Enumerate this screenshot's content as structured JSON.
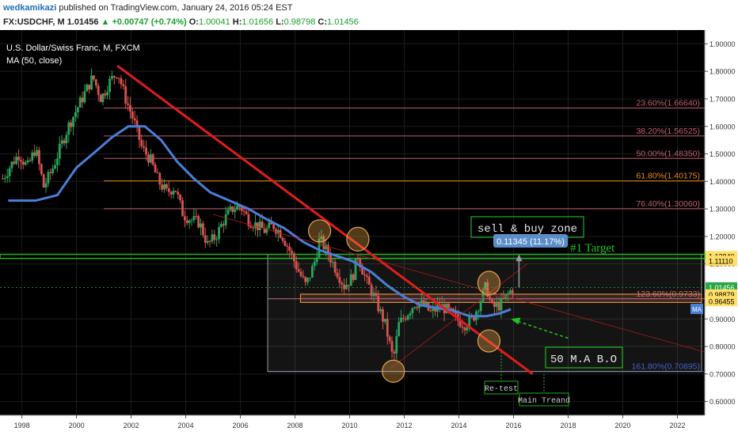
{
  "header": {
    "author": "wedkamikazi",
    "published": "published on TradingView.com, January 24, 2016 05:24 EST",
    "symbol": "FX:USDCHF, M",
    "last": "1.01456",
    "change": "+0.00747 (+0.74%)",
    "o_label": "O:",
    "o_value": "1.00041",
    "h_label": "H:",
    "h_value": "1.01656",
    "l_label": "L:",
    "l_value": "0.98798",
    "c_label": "C:",
    "c_value": "1.01456",
    "up_arrow": "▲"
  },
  "chart_data": {
    "type": "candlestick",
    "title": "U.S. Dollar/Swiss Franc, M, FXCM",
    "indicator": "MA (50, close)",
    "x_ticks": [
      "1998",
      "2000",
      "2002",
      "2004",
      "2006",
      "2008",
      "2010",
      "2012",
      "2014",
      "2016",
      "2018",
      "2020",
      "2022"
    ],
    "y_ticks": [
      "1.90000",
      "1.80000",
      "1.70000",
      "1.60000",
      "1.50000",
      "1.40000",
      "1.30000",
      "1.20000",
      "1.10000",
      "0.90000",
      "0.80000",
      "0.70000",
      "0.60000"
    ],
    "ylim": [
      0.55,
      1.95
    ],
    "xlim": [
      1997.2,
      2023.0
    ],
    "price_path": [
      [
        1997.3,
        1.41
      ],
      [
        1997.6,
        1.46
      ],
      [
        1997.9,
        1.5
      ],
      [
        1998.2,
        1.45
      ],
      [
        1998.5,
        1.52
      ],
      [
        1998.8,
        1.38
      ],
      [
        1999.1,
        1.44
      ],
      [
        1999.4,
        1.52
      ],
      [
        1999.7,
        1.6
      ],
      [
        2000.0,
        1.66
      ],
      [
        2000.3,
        1.72
      ],
      [
        2000.6,
        1.78
      ],
      [
        2000.9,
        1.7
      ],
      [
        2001.2,
        1.76
      ],
      [
        2001.5,
        1.8
      ],
      [
        2001.8,
        1.7
      ],
      [
        2002.1,
        1.62
      ],
      [
        2002.4,
        1.52
      ],
      [
        2002.7,
        1.48
      ],
      [
        2003.0,
        1.4
      ],
      [
        2003.3,
        1.36
      ],
      [
        2003.6,
        1.38
      ],
      [
        2003.9,
        1.28
      ],
      [
        2004.2,
        1.26
      ],
      [
        2004.5,
        1.25
      ],
      [
        2004.8,
        1.17
      ],
      [
        2005.1,
        1.2
      ],
      [
        2005.4,
        1.26
      ],
      [
        2005.7,
        1.3
      ],
      [
        2006.0,
        1.31
      ],
      [
        2006.3,
        1.26
      ],
      [
        2006.6,
        1.24
      ],
      [
        2006.9,
        1.22
      ],
      [
        2007.2,
        1.24
      ],
      [
        2007.5,
        1.21
      ],
      [
        2007.8,
        1.15
      ],
      [
        2008.1,
        1.08
      ],
      [
        2008.4,
        1.02
      ],
      [
        2008.7,
        1.1
      ],
      [
        2008.9,
        1.19
      ],
      [
        2009.2,
        1.14
      ],
      [
        2009.5,
        1.08
      ],
      [
        2009.8,
        1.02
      ],
      [
        2010.1,
        1.05
      ],
      [
        2010.3,
        1.13
      ],
      [
        2010.6,
        1.04
      ],
      [
        2010.9,
        0.98
      ],
      [
        2011.1,
        0.93
      ],
      [
        2011.3,
        0.88
      ],
      [
        2011.6,
        0.75
      ],
      [
        2011.8,
        0.88
      ],
      [
        2012.1,
        0.92
      ],
      [
        2012.4,
        0.96
      ],
      [
        2012.7,
        0.95
      ],
      [
        2013.0,
        0.92
      ],
      [
        2013.3,
        0.95
      ],
      [
        2013.6,
        0.93
      ],
      [
        2013.9,
        0.9
      ],
      [
        2014.2,
        0.88
      ],
      [
        2014.5,
        0.9
      ],
      [
        2014.8,
        0.97
      ],
      [
        2015.0,
        1.02
      ],
      [
        2015.2,
        0.94
      ],
      [
        2015.5,
        0.95
      ],
      [
        2015.8,
        0.99
      ],
      [
        2016.0,
        1.01456
      ]
    ],
    "ma_path": [
      [
        1997.5,
        1.33
      ],
      [
        1998.5,
        1.33
      ],
      [
        1999.3,
        1.35
      ],
      [
        2000.0,
        1.45
      ],
      [
        2000.6,
        1.5
      ],
      [
        2001.3,
        1.56
      ],
      [
        2001.9,
        1.6
      ],
      [
        2002.5,
        1.6
      ],
      [
        2003.1,
        1.55
      ],
      [
        2003.7,
        1.47
      ],
      [
        2004.3,
        1.41
      ],
      [
        2004.9,
        1.36
      ],
      [
        2005.6,
        1.33
      ],
      [
        2006.3,
        1.3
      ],
      [
        2007.0,
        1.26
      ],
      [
        2007.6,
        1.23
      ],
      [
        2008.3,
        1.18
      ],
      [
        2008.9,
        1.15
      ],
      [
        2009.5,
        1.13
      ],
      [
        2010.1,
        1.11
      ],
      [
        2010.8,
        1.07
      ],
      [
        2011.4,
        1.02
      ],
      [
        2012.0,
        0.98
      ],
      [
        2012.6,
        0.95
      ],
      [
        2013.2,
        0.94
      ],
      [
        2013.8,
        0.93
      ],
      [
        2014.4,
        0.91
      ],
      [
        2015.0,
        0.91
      ],
      [
        2015.5,
        0.92
      ],
      [
        2015.9,
        0.935
      ]
    ],
    "horizontal_levels": [
      {
        "label": "23.60%(1.66640)",
        "price": 1.6664,
        "color": "#c06070"
      },
      {
        "label": "38.20%(1.56525)",
        "price": 1.56525,
        "color": "#c06070"
      },
      {
        "label": "50.00%(1.48350)",
        "price": 1.4835,
        "color": "#c06070"
      },
      {
        "label": "61.80%(1.40175)",
        "price": 1.40175,
        "color": "#e88a1e"
      },
      {
        "label": "76.40%(1.30060)",
        "price": 1.3006,
        "color": "#c06070"
      },
      {
        "label": "123.60%(0.9733)",
        "price": 0.9733,
        "color": "#c06070"
      },
      {
        "label": "161.80%(0.70895)",
        "price": 0.70895,
        "color": "#3a50c8"
      }
    ],
    "support_band": [
      1.12,
      1.135
    ],
    "right_price_tags": [
      {
        "text": "1.12840",
        "price": 1.1284,
        "bg": "#ffe066",
        "fg": "#000000"
      },
      {
        "text": "1.11110",
        "price": 1.1111,
        "bg": "#ffe066",
        "fg": "#000000"
      },
      {
        "text": "1.01456",
        "price": 1.01456,
        "bg": "#28a745",
        "fg": "#ffffff"
      },
      {
        "text": "0.98879",
        "price": 0.98879,
        "bg": "#ffe066",
        "fg": "#000000"
      },
      {
        "text": "0.96455",
        "price": 0.96455,
        "bg": "#ffe066",
        "fg": "#000000"
      }
    ],
    "ma_tag": "MA",
    "annotations": {
      "sell_buy_zone": "sell & buy zone",
      "measure": "0.11345 (11.17%)",
      "target": "#1 Target",
      "ma_breakout": "50 M.A B.O",
      "retest": "Re-test",
      "main_trend": "Main Treand"
    }
  }
}
